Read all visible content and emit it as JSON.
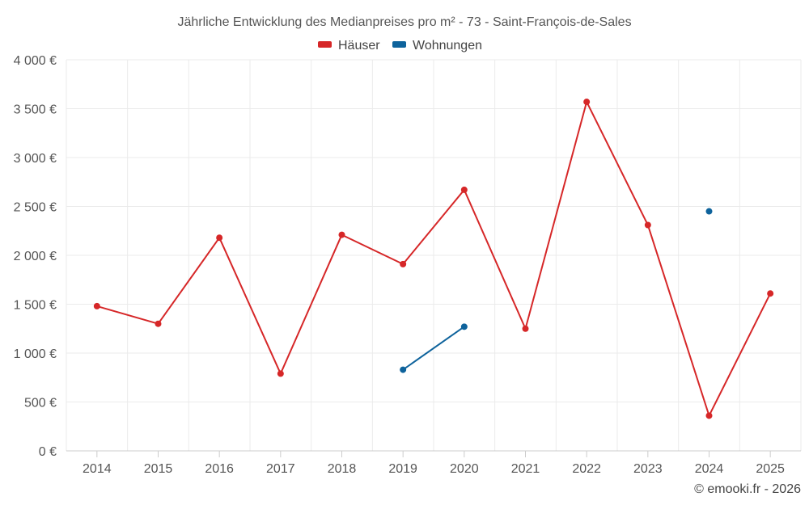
{
  "chart_data": {
    "type": "line",
    "title": "Jährliche Entwicklung des Medianpreises pro m² - 73 - Saint-François-de-Sales",
    "categories": [
      "2014",
      "2015",
      "2016",
      "2017",
      "2018",
      "2019",
      "2020",
      "2021",
      "2022",
      "2023",
      "2024",
      "2025"
    ],
    "series": [
      {
        "name": "Häuser",
        "color": "#d62728",
        "values": [
          1480,
          1300,
          2180,
          790,
          2210,
          1910,
          2670,
          1250,
          3570,
          2310,
          360,
          1610
        ]
      },
      {
        "name": "Wohnungen",
        "color": "#0e639c",
        "values": [
          null,
          null,
          null,
          null,
          null,
          830,
          1270,
          null,
          null,
          null,
          2450,
          null
        ]
      }
    ],
    "ylim": [
      0,
      4000
    ],
    "yticks": [
      0,
      500,
      1000,
      1500,
      2000,
      2500,
      3000,
      3500,
      4000
    ],
    "ytick_labels": [
      "0 €",
      "500 €",
      "1 000 €",
      "1 500 €",
      "2 000 €",
      "2 500 €",
      "3 000 €",
      "3 500 €",
      "4 000 €"
    ],
    "xlabel": "",
    "ylabel": "",
    "grid": true,
    "legend_position": "top-center"
  },
  "credit": "© emooki.fr - 2026"
}
